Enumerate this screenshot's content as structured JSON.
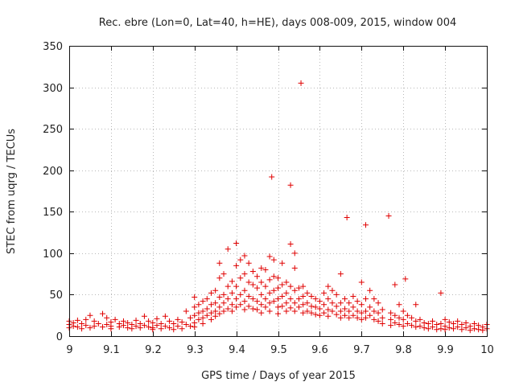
{
  "chart_data": {
    "type": "scatter",
    "title": "Rec. ebre (Lon=0, Lat=40, h=HE), days 008-009, 2015, window 004",
    "xlabel": "GPS time / Days of year 2015",
    "ylabel": "STEC from uqrg / TECUs",
    "xlim": [
      9,
      10
    ],
    "ylim": [
      0,
      350
    ],
    "xticks": [
      9,
      9.1,
      9.2,
      9.3,
      9.4,
      9.5,
      9.6,
      9.7,
      9.8,
      9.9,
      10
    ],
    "xtick_labels": [
      "9",
      "9.1",
      "9.2",
      "9.3",
      "9.4",
      "9.5",
      "9.6",
      "9.7",
      "9.8",
      "9.9",
      "10"
    ],
    "yticks": [
      0,
      50,
      100,
      150,
      200,
      250,
      300,
      350
    ],
    "ytick_labels": [
      "0",
      "50",
      "100",
      "150",
      "200",
      "250",
      "300",
      "350"
    ],
    "grid": true,
    "marker": "+",
    "color": "#e00000",
    "series": [
      {
        "name": "STEC",
        "points": [
          [
            9.0,
            18
          ],
          [
            9.0,
            14
          ],
          [
            9.0,
            10
          ],
          [
            9.01,
            16
          ],
          [
            9.01,
            12
          ],
          [
            9.02,
            19
          ],
          [
            9.02,
            11
          ],
          [
            9.03,
            15
          ],
          [
            9.03,
            9
          ],
          [
            9.04,
            20
          ],
          [
            9.04,
            13
          ],
          [
            9.05,
            25
          ],
          [
            9.05,
            10
          ],
          [
            9.06,
            18
          ],
          [
            9.06,
            12
          ],
          [
            9.07,
            15
          ],
          [
            9.08,
            11
          ],
          [
            9.08,
            27
          ],
          [
            9.09,
            22
          ],
          [
            9.09,
            14
          ],
          [
            9.1,
            17
          ],
          [
            9.1,
            12
          ],
          [
            9.1,
            9
          ],
          [
            9.11,
            20
          ],
          [
            9.12,
            15
          ],
          [
            9.12,
            11
          ],
          [
            9.13,
            18
          ],
          [
            9.13,
            13
          ],
          [
            9.14,
            16
          ],
          [
            9.14,
            10
          ],
          [
            9.15,
            14
          ],
          [
            9.15,
            9
          ],
          [
            9.16,
            19
          ],
          [
            9.16,
            12
          ],
          [
            9.17,
            15
          ],
          [
            9.17,
            10
          ],
          [
            9.18,
            24
          ],
          [
            9.18,
            13
          ],
          [
            9.19,
            18
          ],
          [
            9.19,
            11
          ],
          [
            9.2,
            16
          ],
          [
            9.2,
            10
          ],
          [
            9.2,
            8
          ],
          [
            9.21,
            21
          ],
          [
            9.21,
            13
          ],
          [
            9.22,
            15
          ],
          [
            9.22,
            9
          ],
          [
            9.23,
            24
          ],
          [
            9.23,
            12
          ],
          [
            9.24,
            18
          ],
          [
            9.24,
            10
          ],
          [
            9.25,
            15
          ],
          [
            9.25,
            8
          ],
          [
            9.26,
            20
          ],
          [
            9.26,
            12
          ],
          [
            9.27,
            17
          ],
          [
            9.27,
            9
          ],
          [
            9.28,
            30
          ],
          [
            9.28,
            14
          ],
          [
            9.29,
            22
          ],
          [
            9.29,
            12
          ],
          [
            9.3,
            47
          ],
          [
            9.3,
            35
          ],
          [
            9.3,
            25
          ],
          [
            9.3,
            16
          ],
          [
            9.3,
            11
          ],
          [
            9.31,
            38
          ],
          [
            9.31,
            28
          ],
          [
            9.31,
            20
          ],
          [
            9.32,
            42
          ],
          [
            9.32,
            30
          ],
          [
            9.32,
            22
          ],
          [
            9.32,
            15
          ],
          [
            9.33,
            45
          ],
          [
            9.33,
            33
          ],
          [
            9.33,
            25
          ],
          [
            9.34,
            52
          ],
          [
            9.34,
            38
          ],
          [
            9.34,
            28
          ],
          [
            9.34,
            20
          ],
          [
            9.35,
            55
          ],
          [
            9.35,
            40
          ],
          [
            9.35,
            30
          ],
          [
            9.35,
            24
          ],
          [
            9.36,
            70
          ],
          [
            9.36,
            88
          ],
          [
            9.36,
            47
          ],
          [
            9.36,
            35
          ],
          [
            9.36,
            27
          ],
          [
            9.37,
            75
          ],
          [
            9.37,
            50
          ],
          [
            9.37,
            40
          ],
          [
            9.37,
            30
          ],
          [
            9.38,
            105
          ],
          [
            9.38,
            60
          ],
          [
            9.38,
            45
          ],
          [
            9.38,
            33
          ],
          [
            9.39,
            66
          ],
          [
            9.39,
            52
          ],
          [
            9.39,
            38
          ],
          [
            9.39,
            30
          ],
          [
            9.4,
            112
          ],
          [
            9.4,
            85
          ],
          [
            9.4,
            60
          ],
          [
            9.4,
            45
          ],
          [
            9.4,
            35
          ],
          [
            9.41,
            92
          ],
          [
            9.41,
            70
          ],
          [
            9.41,
            50
          ],
          [
            9.41,
            38
          ],
          [
            9.42,
            97
          ],
          [
            9.42,
            75
          ],
          [
            9.42,
            55
          ],
          [
            9.42,
            42
          ],
          [
            9.42,
            32
          ],
          [
            9.43,
            88
          ],
          [
            9.43,
            65
          ],
          [
            9.43,
            48
          ],
          [
            9.43,
            36
          ],
          [
            9.44,
            78
          ],
          [
            9.44,
            62
          ],
          [
            9.44,
            45
          ],
          [
            9.44,
            33
          ],
          [
            9.45,
            72
          ],
          [
            9.45,
            58
          ],
          [
            9.45,
            42
          ],
          [
            9.45,
            32
          ],
          [
            9.46,
            82
          ],
          [
            9.46,
            65
          ],
          [
            9.46,
            50
          ],
          [
            9.46,
            38
          ],
          [
            9.46,
            28
          ],
          [
            9.47,
            80
          ],
          [
            9.47,
            60
          ],
          [
            9.47,
            45
          ],
          [
            9.47,
            35
          ],
          [
            9.48,
            96
          ],
          [
            9.48,
            68
          ],
          [
            9.48,
            52
          ],
          [
            9.48,
            40
          ],
          [
            9.48,
            30
          ],
          [
            9.485,
            192
          ],
          [
            9.49,
            92
          ],
          [
            9.49,
            72
          ],
          [
            9.49,
            55
          ],
          [
            9.49,
            42
          ],
          [
            9.5,
            70
          ],
          [
            9.5,
            58
          ],
          [
            9.5,
            45
          ],
          [
            9.5,
            35
          ],
          [
            9.5,
            27
          ],
          [
            9.51,
            88
          ],
          [
            9.51,
            62
          ],
          [
            9.51,
            48
          ],
          [
            9.51,
            36
          ],
          [
            9.52,
            65
          ],
          [
            9.52,
            52
          ],
          [
            9.52,
            40
          ],
          [
            9.52,
            30
          ],
          [
            9.53,
            182
          ],
          [
            9.53,
            111
          ],
          [
            9.53,
            60
          ],
          [
            9.53,
            45
          ],
          [
            9.53,
            34
          ],
          [
            9.54,
            100
          ],
          [
            9.54,
            82
          ],
          [
            9.54,
            55
          ],
          [
            9.54,
            40
          ],
          [
            9.54,
            30
          ],
          [
            9.55,
            58
          ],
          [
            9.55,
            45
          ],
          [
            9.55,
            35
          ],
          [
            9.555,
            305
          ],
          [
            9.56,
            60
          ],
          [
            9.56,
            48
          ],
          [
            9.56,
            38
          ],
          [
            9.56,
            28
          ],
          [
            9.57,
            52
          ],
          [
            9.57,
            40
          ],
          [
            9.57,
            30
          ],
          [
            9.58,
            48
          ],
          [
            9.58,
            36
          ],
          [
            9.58,
            28
          ],
          [
            9.59,
            45
          ],
          [
            9.59,
            35
          ],
          [
            9.59,
            26
          ],
          [
            9.6,
            42
          ],
          [
            9.6,
            33
          ],
          [
            9.6,
            25
          ],
          [
            9.61,
            52
          ],
          [
            9.61,
            38
          ],
          [
            9.61,
            28
          ],
          [
            9.62,
            60
          ],
          [
            9.62,
            45
          ],
          [
            9.62,
            32
          ],
          [
            9.62,
            24
          ],
          [
            9.63,
            55
          ],
          [
            9.63,
            40
          ],
          [
            9.63,
            30
          ],
          [
            9.64,
            50
          ],
          [
            9.64,
            36
          ],
          [
            9.64,
            26
          ],
          [
            9.65,
            75
          ],
          [
            9.65,
            40
          ],
          [
            9.65,
            30
          ],
          [
            9.65,
            22
          ],
          [
            9.66,
            45
          ],
          [
            9.66,
            33
          ],
          [
            9.66,
            25
          ],
          [
            9.665,
            143
          ],
          [
            9.67,
            40
          ],
          [
            9.67,
            30
          ],
          [
            9.67,
            22
          ],
          [
            9.68,
            48
          ],
          [
            9.68,
            35
          ],
          [
            9.68,
            25
          ],
          [
            9.69,
            42
          ],
          [
            9.69,
            30
          ],
          [
            9.69,
            22
          ],
          [
            9.7,
            65
          ],
          [
            9.7,
            38
          ],
          [
            9.7,
            28
          ],
          [
            9.7,
            20
          ],
          [
            9.71,
            134
          ],
          [
            9.71,
            45
          ],
          [
            9.71,
            30
          ],
          [
            9.71,
            22
          ],
          [
            9.72,
            55
          ],
          [
            9.72,
            35
          ],
          [
            9.72,
            25
          ],
          [
            9.73,
            45
          ],
          [
            9.73,
            30
          ],
          [
            9.73,
            20
          ],
          [
            9.74,
            40
          ],
          [
            9.74,
            28
          ],
          [
            9.74,
            18
          ],
          [
            9.75,
            32
          ],
          [
            9.75,
            22
          ],
          [
            9.75,
            15
          ],
          [
            9.765,
            145
          ],
          [
            9.77,
            28
          ],
          [
            9.77,
            20
          ],
          [
            9.77,
            13
          ],
          [
            9.78,
            62
          ],
          [
            9.78,
            25
          ],
          [
            9.78,
            16
          ],
          [
            9.79,
            38
          ],
          [
            9.79,
            22
          ],
          [
            9.79,
            14
          ],
          [
            9.8,
            30
          ],
          [
            9.8,
            20
          ],
          [
            9.8,
            12
          ],
          [
            9.805,
            69
          ],
          [
            9.81,
            25
          ],
          [
            9.81,
            15
          ],
          [
            9.82,
            22
          ],
          [
            9.82,
            13
          ],
          [
            9.83,
            38
          ],
          [
            9.83,
            18
          ],
          [
            9.83,
            11
          ],
          [
            9.84,
            20
          ],
          [
            9.84,
            12
          ],
          [
            9.85,
            16
          ],
          [
            9.85,
            10
          ],
          [
            9.86,
            15
          ],
          [
            9.86,
            9
          ],
          [
            9.87,
            18
          ],
          [
            9.87,
            11
          ],
          [
            9.88,
            14
          ],
          [
            9.88,
            8
          ],
          [
            9.89,
            52
          ],
          [
            9.89,
            15
          ],
          [
            9.89,
            9
          ],
          [
            9.9,
            20
          ],
          [
            9.9,
            12
          ],
          [
            9.9,
            8
          ],
          [
            9.91,
            17
          ],
          [
            9.91,
            10
          ],
          [
            9.92,
            15
          ],
          [
            9.92,
            9
          ],
          [
            9.93,
            18
          ],
          [
            9.93,
            11
          ],
          [
            9.94,
            14
          ],
          [
            9.94,
            8
          ],
          [
            9.95,
            16
          ],
          [
            9.95,
            10
          ],
          [
            9.96,
            12
          ],
          [
            9.96,
            7
          ],
          [
            9.97,
            15
          ],
          [
            9.97,
            9
          ],
          [
            9.98,
            13
          ],
          [
            9.98,
            8
          ],
          [
            9.99,
            11
          ],
          [
            9.99,
            7
          ],
          [
            10.0,
            14
          ],
          [
            10.0,
            9
          ]
        ]
      }
    ]
  }
}
